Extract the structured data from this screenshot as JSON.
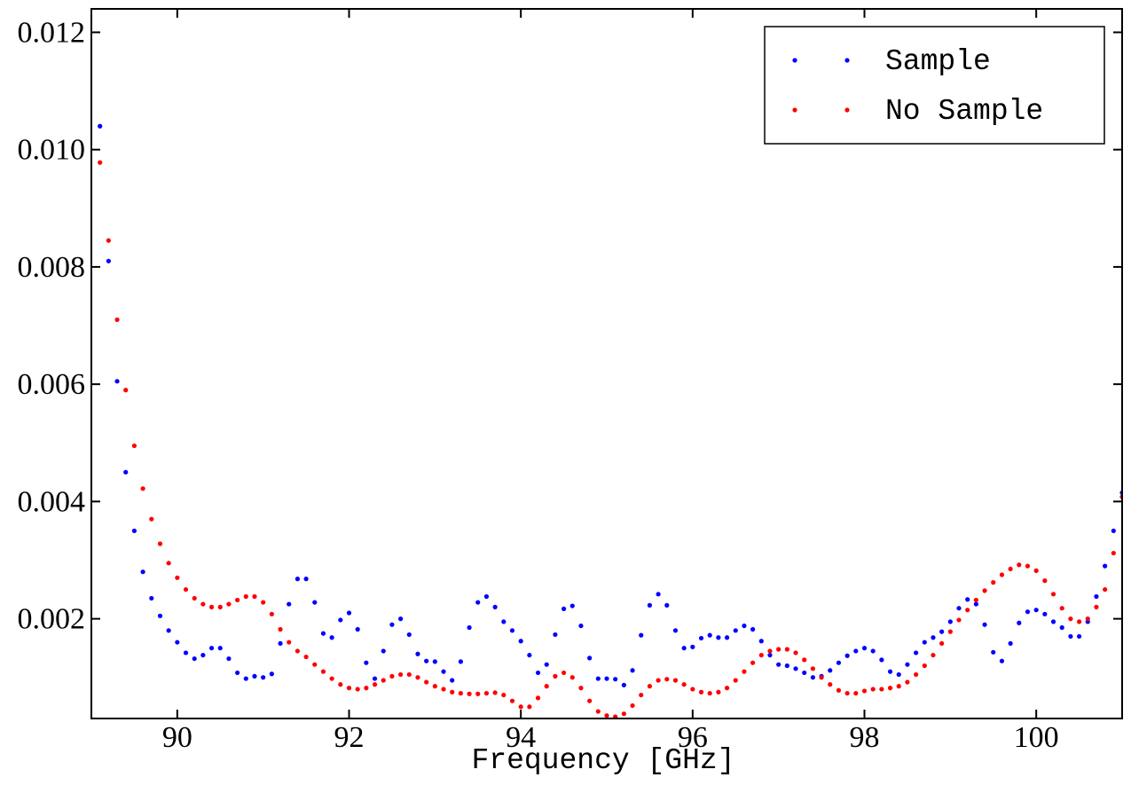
{
  "chart_data": {
    "type": "scatter",
    "xlabel": "Frequency [GHz]",
    "xlim": [
      89,
      101
    ],
    "ylim": [
      0.0003,
      0.0124
    ],
    "xticks": [
      90,
      92,
      94,
      96,
      98,
      100
    ],
    "yticks": [
      0.002,
      0.004,
      0.006,
      0.008,
      {
        "value": 0.01,
        "label": "0.010"
      },
      0.012
    ],
    "legend": "upper right",
    "x": [
      89.1,
      89.2,
      89.3,
      89.4,
      89.5,
      89.6,
      89.7,
      89.8,
      89.9,
      90.0,
      90.1,
      90.2,
      90.3,
      90.4,
      90.5,
      90.6,
      90.7,
      90.8,
      90.9,
      91.0,
      91.1,
      91.2,
      91.3,
      91.4,
      91.5,
      91.6,
      91.7,
      91.8,
      91.9,
      92.0,
      92.1,
      92.2,
      92.3,
      92.4,
      92.5,
      92.6,
      92.7,
      92.8,
      92.9,
      93.0,
      93.1,
      93.2,
      93.3,
      93.4,
      93.5,
      93.6,
      93.7,
      93.8,
      93.9,
      94.0,
      94.1,
      94.2,
      94.3,
      94.4,
      94.5,
      94.6,
      94.7,
      94.8,
      94.9,
      95.0,
      95.1,
      95.2,
      95.3,
      95.4,
      95.5,
      95.6,
      95.7,
      95.8,
      95.9,
      96.0,
      96.1,
      96.2,
      96.3,
      96.4,
      96.5,
      96.6,
      96.7,
      96.8,
      96.9,
      97.0,
      97.1,
      97.2,
      97.3,
      97.4,
      97.5,
      97.6,
      97.7,
      97.8,
      97.9,
      98.0,
      98.1,
      98.2,
      98.3,
      98.4,
      98.5,
      98.6,
      98.7,
      98.8,
      98.9,
      99.0,
      99.1,
      99.2,
      99.3,
      99.4,
      99.5,
      99.6,
      99.7,
      99.8,
      99.9,
      100.0,
      100.1,
      100.2,
      100.3,
      100.4,
      100.5,
      100.6,
      100.7,
      100.8,
      100.9,
      101.0
    ],
    "series": [
      {
        "name": "Sample",
        "color": "#0000ff",
        "values": [
          0.0104,
          0.0081,
          0.00605,
          0.0045,
          0.0035,
          0.0028,
          0.00235,
          0.00205,
          0.0018,
          0.0016,
          0.00142,
          0.00132,
          0.00138,
          0.0015,
          0.0015,
          0.00132,
          0.00108,
          0.00098,
          0.00102,
          0.001,
          0.00106,
          0.00158,
          0.00225,
          0.00268,
          0.00268,
          0.00228,
          0.00175,
          0.00168,
          0.00198,
          0.0021,
          0.00182,
          0.00125,
          0.00098,
          0.00145,
          0.0019,
          0.002,
          0.00173,
          0.0014,
          0.00128,
          0.00127,
          0.0011,
          0.00095,
          0.00127,
          0.00185,
          0.00228,
          0.00238,
          0.0022,
          0.00195,
          0.0018,
          0.00162,
          0.00138,
          0.00108,
          0.00122,
          0.00173,
          0.00217,
          0.00222,
          0.00188,
          0.00133,
          0.00098,
          0.00098,
          0.00097,
          0.00087,
          0.00112,
          0.00172,
          0.00223,
          0.00242,
          0.00223,
          0.0018,
          0.0015,
          0.00152,
          0.00167,
          0.00172,
          0.00168,
          0.00168,
          0.0018,
          0.00188,
          0.00182,
          0.00162,
          0.00138,
          0.00122,
          0.0012,
          0.00115,
          0.00108,
          0.001,
          0.00102,
          0.00112,
          0.00125,
          0.00137,
          0.00145,
          0.0015,
          0.00145,
          0.0013,
          0.0011,
          0.00105,
          0.00122,
          0.00142,
          0.0016,
          0.00168,
          0.00178,
          0.00195,
          0.00218,
          0.00233,
          0.00225,
          0.0019,
          0.00143,
          0.00128,
          0.00158,
          0.00193,
          0.00212,
          0.00215,
          0.00208,
          0.00195,
          0.00185,
          0.0017,
          0.0017,
          0.00195,
          0.00238,
          0.0029,
          0.0035,
          0.00415
        ]
      },
      {
        "name": "No Sample",
        "color": "#ff0000",
        "values": [
          0.00978,
          0.00845,
          0.0071,
          0.0059,
          0.00495,
          0.00422,
          0.0037,
          0.00328,
          0.00295,
          0.0027,
          0.0025,
          0.00235,
          0.00225,
          0.0022,
          0.0022,
          0.00225,
          0.00232,
          0.00238,
          0.00238,
          0.00228,
          0.00208,
          0.00182,
          0.0016,
          0.00145,
          0.00135,
          0.00122,
          0.0011,
          0.00098,
          0.00088,
          0.00082,
          0.0008,
          0.00082,
          0.00088,
          0.00095,
          0.00102,
          0.00105,
          0.00105,
          0.001,
          0.00092,
          0.00085,
          0.0008,
          0.00075,
          0.00073,
          0.00072,
          0.00072,
          0.00073,
          0.00074,
          0.0007,
          0.0006,
          0.0005,
          0.0005,
          0.00065,
          0.00085,
          0.00102,
          0.00108,
          0.001,
          0.00082,
          0.0006,
          0.00042,
          0.00035,
          0.00033,
          0.00038,
          0.00052,
          0.0007,
          0.00085,
          0.00095,
          0.00097,
          0.00095,
          0.00088,
          0.0008,
          0.00075,
          0.00073,
          0.00075,
          0.00082,
          0.00095,
          0.0011,
          0.00125,
          0.00138,
          0.00145,
          0.00148,
          0.00148,
          0.00142,
          0.0013,
          0.00115,
          0.001,
          0.00088,
          0.00078,
          0.00073,
          0.00073,
          0.00077,
          0.0008,
          0.0008,
          0.00082,
          0.00085,
          0.00092,
          0.00105,
          0.0012,
          0.00138,
          0.00158,
          0.00178,
          0.00198,
          0.00215,
          0.00232,
          0.00248,
          0.00262,
          0.00275,
          0.00285,
          0.00292,
          0.0029,
          0.00282,
          0.00265,
          0.00242,
          0.00218,
          0.002,
          0.00195,
          0.002,
          0.0022,
          0.0025,
          0.00312,
          0.00408
        ]
      }
    ]
  }
}
